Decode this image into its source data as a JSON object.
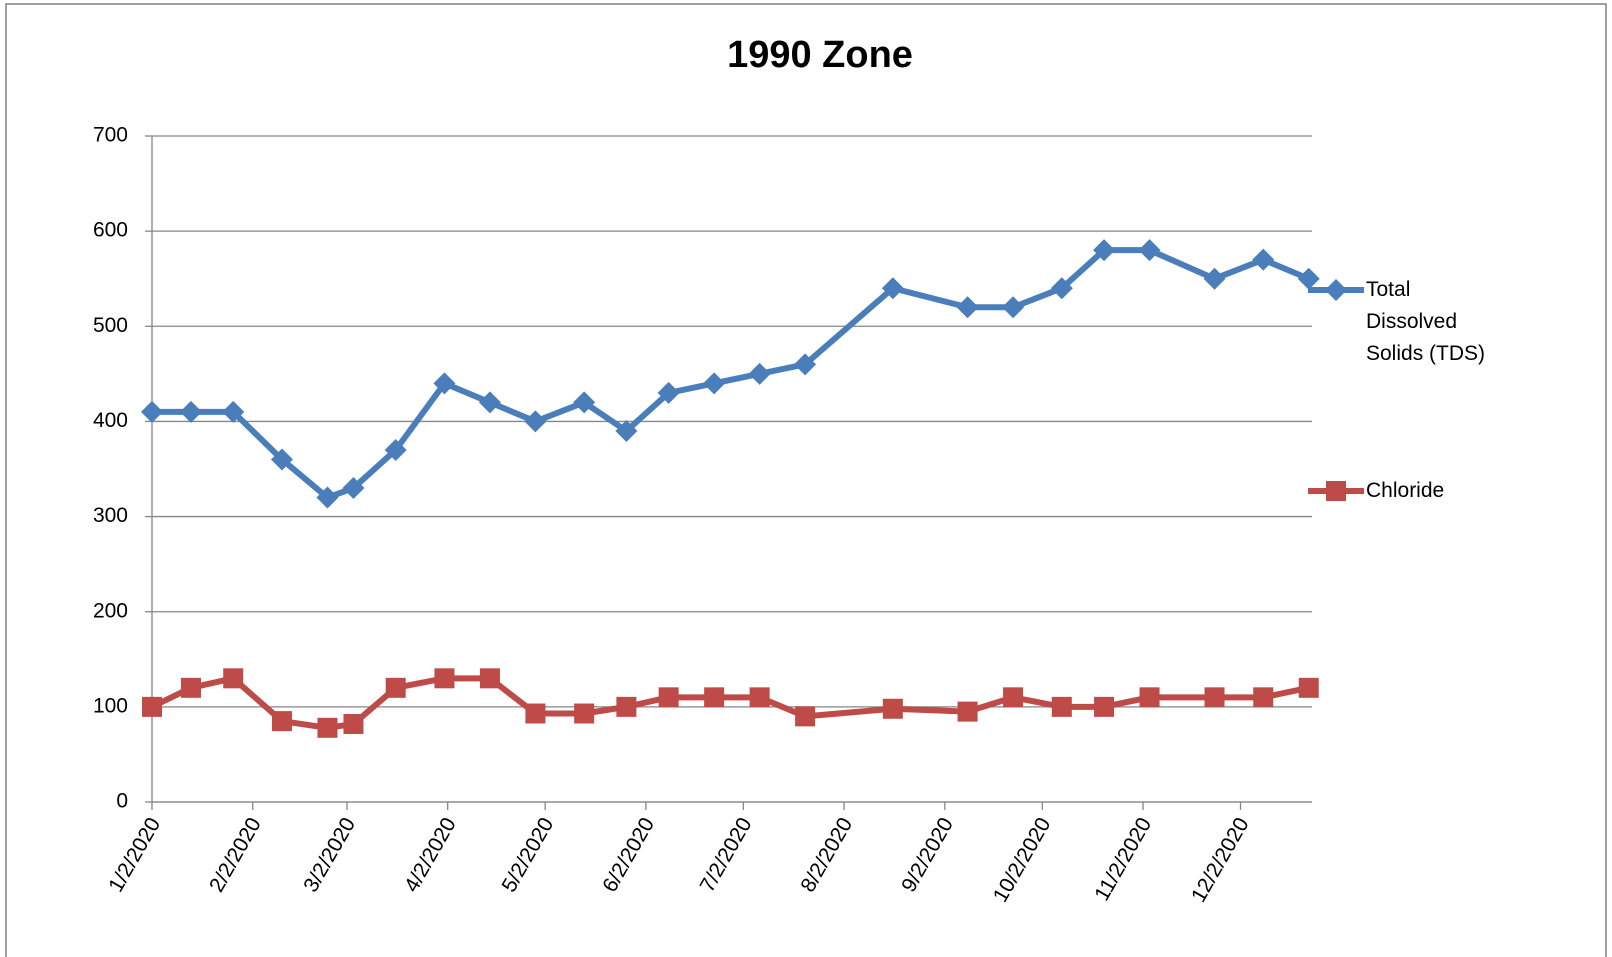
{
  "chart_data": {
    "type": "line",
    "title": "1990 Zone",
    "x": [
      "2020-01-02",
      "2020-01-14",
      "2020-01-27",
      "2020-02-11",
      "2020-02-25",
      "2020-03-04",
      "2020-03-17",
      "2020-04-01",
      "2020-04-15",
      "2020-04-29",
      "2020-05-14",
      "2020-05-27",
      "2020-06-09",
      "2020-06-23",
      "2020-07-07",
      "2020-07-21",
      "2020-08-17",
      "2020-09-09",
      "2020-09-23",
      "2020-10-08",
      "2020-10-21",
      "2020-11-04",
      "2020-11-24",
      "2020-12-09",
      "2020-12-23"
    ],
    "series": [
      {
        "name": "Total Dissolved Solids (TDS)",
        "color": "#4a7ebb",
        "marker": "diamond",
        "values": [
          410,
          410,
          410,
          360,
          320,
          330,
          370,
          440,
          420,
          400,
          420,
          390,
          430,
          440,
          450,
          460,
          540,
          520,
          520,
          540,
          580,
          580,
          550,
          570,
          550
        ]
      },
      {
        "name": "Chloride",
        "color": "#be4b48",
        "marker": "square",
        "values": [
          100,
          120,
          130,
          85,
          78,
          82,
          120,
          130,
          130,
          93,
          93,
          100,
          110,
          110,
          110,
          90,
          98,
          95,
          110,
          100,
          100,
          110,
          110,
          110,
          120
        ]
      }
    ],
    "xlim": [
      "2020-01-02",
      "2020-12-24"
    ],
    "xticks": [
      {
        "value": "2020-01-02",
        "label": "1/2/2020"
      },
      {
        "value": "2020-02-02",
        "label": "2/2/2020"
      },
      {
        "value": "2020-03-02",
        "label": "3/2/2020"
      },
      {
        "value": "2020-04-02",
        "label": "4/2/2020"
      },
      {
        "value": "2020-05-02",
        "label": "5/2/2020"
      },
      {
        "value": "2020-06-02",
        "label": "6/2/2020"
      },
      {
        "value": "2020-07-02",
        "label": "7/2/2020"
      },
      {
        "value": "2020-08-02",
        "label": "8/2/2020"
      },
      {
        "value": "2020-09-02",
        "label": "9/2/2020"
      },
      {
        "value": "2020-10-02",
        "label": "10/2/2020"
      },
      {
        "value": "2020-11-02",
        "label": "11/2/2020"
      },
      {
        "value": "2020-12-02",
        "label": "12/2/2020"
      }
    ],
    "ylim": [
      0,
      700
    ],
    "yticks": [
      0,
      100,
      200,
      300,
      400,
      500,
      600,
      700
    ],
    "grid": true,
    "legend": "right"
  }
}
